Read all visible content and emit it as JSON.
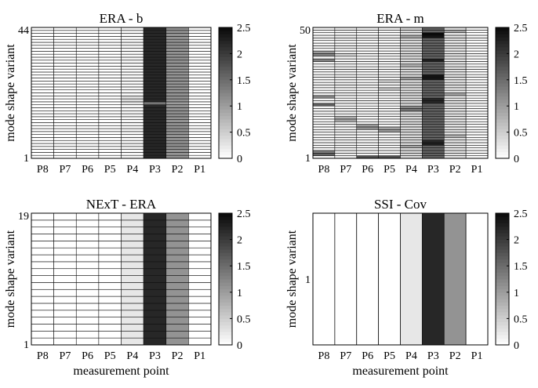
{
  "chart_data": [
    {
      "type": "heatmap",
      "title": "ERA - b",
      "ylabel": "mode shape variant",
      "xlabel": "",
      "categories": [
        "P8",
        "P7",
        "P6",
        "P5",
        "P4",
        "P3",
        "P2",
        "P1"
      ],
      "rows": 44,
      "yticks": [
        "1",
        "44"
      ],
      "colorbar": {
        "range": [
          0,
          2.5
        ],
        "ticks": [
          "0",
          "0.5",
          "1",
          "1.5",
          "2",
          "2.5"
        ],
        "colormap": "white-to-black"
      },
      "column_values": [
        0.0,
        0.0,
        0.0,
        0.0,
        0.08,
        2.2,
        1.1,
        0.0
      ],
      "row_overrides": [
        {
          "column": "P4",
          "row": 20,
          "value": 0.35
        },
        {
          "column": "P4",
          "row": 21,
          "value": 0.3
        },
        {
          "column": "P4",
          "row": 19,
          "value": 0.25
        },
        {
          "column": "P3",
          "row": 19,
          "value": 1.4
        },
        {
          "column": "P2",
          "row": 19,
          "value": 1.0
        },
        {
          "column": "P4",
          "row": 3,
          "value": 0.05
        }
      ]
    },
    {
      "type": "heatmap",
      "title": "ERA - m",
      "ylabel": "mode shape variant",
      "xlabel": "",
      "categories": [
        "P8",
        "P7",
        "P6",
        "P5",
        "P4",
        "P3",
        "P2",
        "P1"
      ],
      "rows": 50,
      "yticks": [
        "1",
        "50"
      ],
      "colorbar": {
        "range": [
          0,
          2.5
        ],
        "ticks": [
          "0",
          "0.5",
          "1",
          "1.5",
          "2",
          "2.5"
        ],
        "colormap": "white-to-black"
      },
      "column_values": [
        0.1,
        0.15,
        0.1,
        0.1,
        0.4,
        1.6,
        0.3,
        0.05
      ],
      "row_overrides": [
        {
          "column": "P8",
          "row": 2,
          "value": 1.6
        },
        {
          "column": "P8",
          "row": 3,
          "value": 1.3
        },
        {
          "column": "P8",
          "row": 21,
          "value": 1.6
        },
        {
          "column": "P8",
          "row": 24,
          "value": 1.2
        },
        {
          "column": "P8",
          "row": 38,
          "value": 1.3
        },
        {
          "column": "P8",
          "row": 40,
          "value": 1.2
        },
        {
          "column": "P8",
          "row": 41,
          "value": 1.0
        },
        {
          "column": "P7",
          "row": 15,
          "value": 0.9
        },
        {
          "column": "P7",
          "row": 16,
          "value": 0.8
        },
        {
          "column": "P7",
          "row": 40,
          "value": 0.4
        },
        {
          "column": "P6",
          "row": 1,
          "value": 1.8
        },
        {
          "column": "P6",
          "row": 12,
          "value": 1.1
        },
        {
          "column": "P6",
          "row": 13,
          "value": 1.0
        },
        {
          "column": "P5",
          "row": 1,
          "value": 1.8
        },
        {
          "column": "P5",
          "row": 11,
          "value": 1.0
        },
        {
          "column": "P5",
          "row": 12,
          "value": 0.9
        },
        {
          "column": "P5",
          "row": 27,
          "value": 0.6
        },
        {
          "column": "P5",
          "row": 30,
          "value": 0.5
        },
        {
          "column": "P4",
          "row": 5,
          "value": 0.9
        },
        {
          "column": "P4",
          "row": 19,
          "value": 1.4
        },
        {
          "column": "P4",
          "row": 20,
          "value": 1.2
        },
        {
          "column": "P4",
          "row": 31,
          "value": 1.0
        },
        {
          "column": "P4",
          "row": 36,
          "value": 0.8
        },
        {
          "column": "P4",
          "row": 47,
          "value": 0.9
        },
        {
          "column": "P3",
          "row": 6,
          "value": 2.3
        },
        {
          "column": "P3",
          "row": 7,
          "value": 2.2
        },
        {
          "column": "P3",
          "row": 22,
          "value": 2.2
        },
        {
          "column": "P3",
          "row": 23,
          "value": 2.2
        },
        {
          "column": "P3",
          "row": 31,
          "value": 2.4
        },
        {
          "column": "P3",
          "row": 32,
          "value": 2.4
        },
        {
          "column": "P3",
          "row": 38,
          "value": 2.3
        },
        {
          "column": "P3",
          "row": 47,
          "value": 2.4
        },
        {
          "column": "P3",
          "row": 48,
          "value": 2.5
        },
        {
          "column": "P2",
          "row": 9,
          "value": 0.8
        },
        {
          "column": "P2",
          "row": 25,
          "value": 0.9
        },
        {
          "column": "P2",
          "row": 49,
          "value": 0.9
        }
      ]
    },
    {
      "type": "heatmap",
      "title": "NExT - ERA",
      "ylabel": "mode shape variant",
      "xlabel": "measurement point",
      "categories": [
        "P8",
        "P7",
        "P6",
        "P5",
        "P4",
        "P3",
        "P2",
        "P1"
      ],
      "rows": 19,
      "yticks": [
        "1",
        "19"
      ],
      "colorbar": {
        "range": [
          0,
          2.5
        ],
        "ticks": [
          "0",
          "0.5",
          "1",
          "1.5",
          "2",
          "2.5"
        ],
        "colormap": "white-to-black"
      },
      "column_values": [
        0.0,
        0.0,
        0.0,
        0.0,
        0.25,
        2.2,
        1.1,
        0.0
      ],
      "row_overrides": []
    },
    {
      "type": "heatmap",
      "title": "SSI - Cov",
      "ylabel": "mode shape variant",
      "xlabel": "measurement point",
      "categories": [
        "P8",
        "P7",
        "P6",
        "P5",
        "P4",
        "P3",
        "P2",
        "P1"
      ],
      "rows": 1,
      "yticks": [
        "1"
      ],
      "colorbar": {
        "range": [
          0,
          2.5
        ],
        "ticks": [
          "0",
          "0.5",
          "1",
          "1.5",
          "2",
          "2.5"
        ],
        "colormap": "white-to-black"
      },
      "column_values": [
        0.0,
        0.0,
        0.0,
        0.0,
        0.25,
        2.2,
        1.1,
        0.0
      ],
      "row_overrides": []
    }
  ]
}
